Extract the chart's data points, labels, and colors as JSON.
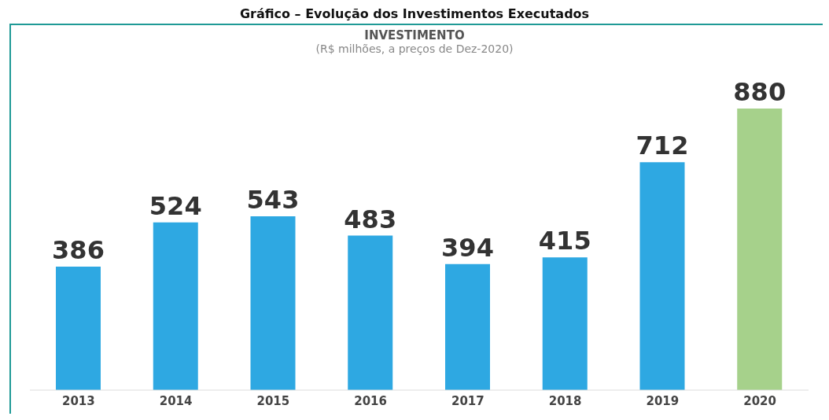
{
  "chart_data": {
    "type": "bar",
    "title": "INVESTIMENTO",
    "subtitle": "(R$ milhões, a preços de Dez-2020)",
    "annotations": [
      "Gráfico – Evolução dos Investimentos Executados"
    ],
    "categories": [
      "2013",
      "2014",
      "2015",
      "2016",
      "2017",
      "2018",
      "2019",
      "2020"
    ],
    "values": [
      386,
      524,
      543,
      483,
      394,
      415,
      712,
      880
    ],
    "colors": [
      "#2ea8e2",
      "#2ea8e2",
      "#2ea8e2",
      "#2ea8e2",
      "#2ea8e2",
      "#2ea8e2",
      "#2ea8e2",
      "#a6d18b"
    ],
    "data_labels": true,
    "grid": false,
    "legend": false
  }
}
